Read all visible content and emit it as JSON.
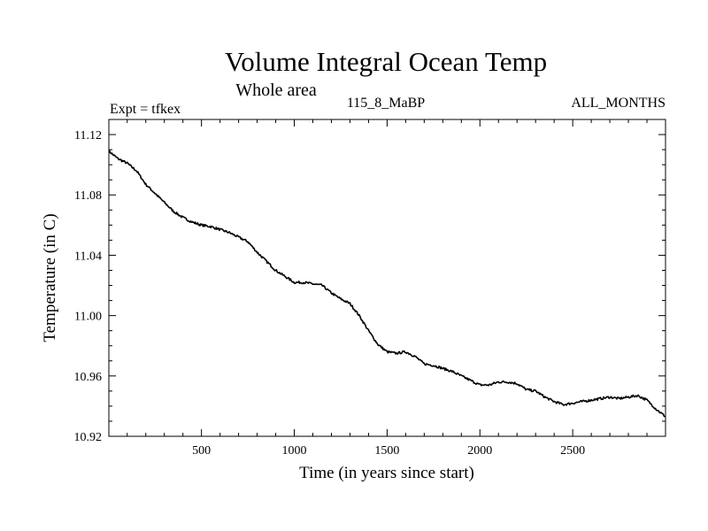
{
  "chart_data": {
    "type": "line",
    "title": "Volume Integral Ocean Temp",
    "subtitle": "Whole area",
    "expt_label": "Expt = tfkex",
    "run_label": "115_8_MaBP",
    "period_label": "ALL_MONTHS",
    "xlabel": "Time (in years since start)",
    "ylabel": "Temperature (in C)",
    "xlim": [
      1,
      3000
    ],
    "ylim": [
      10.92,
      11.13
    ],
    "x_ticks": [
      500,
      1000,
      1500,
      2000,
      2500
    ],
    "x_tick_labels": [
      "500",
      "1000",
      "1500",
      "2000",
      "2500"
    ],
    "y_ticks": [
      10.92,
      10.96,
      11.0,
      11.04,
      11.08,
      11.12
    ],
    "y_tick_labels": [
      "10.92",
      "10.96",
      "11.00",
      "11.04",
      "11.08",
      "11.12"
    ],
    "grid": false,
    "line_color": "#000000",
    "series": [
      {
        "x": [
          1,
          50,
          100,
          150,
          200,
          250,
          300,
          350,
          400,
          450,
          500,
          550,
          600,
          650,
          700,
          750,
          800,
          850,
          900,
          950,
          1000,
          1050,
          1100,
          1150,
          1200,
          1250,
          1300,
          1350,
          1400,
          1450,
          1500,
          1550,
          1600,
          1650,
          1700,
          1750,
          1800,
          1850,
          1900,
          1950,
          2000,
          2050,
          2100,
          2150,
          2200,
          2250,
          2300,
          2350,
          2400,
          2450,
          2500,
          2550,
          2600,
          2650,
          2700,
          2750,
          2800,
          2850,
          2900,
          2950,
          3000
        ],
        "y": [
          11.109,
          11.104,
          11.101,
          11.096,
          11.087,
          11.081,
          11.075,
          11.069,
          11.065,
          11.062,
          11.06,
          11.059,
          11.057,
          11.055,
          11.052,
          11.049,
          11.042,
          11.036,
          11.03,
          11.026,
          11.022,
          11.022,
          11.021,
          11.02,
          11.015,
          11.011,
          11.008,
          11.0,
          10.99,
          10.981,
          10.976,
          10.975,
          10.976,
          10.973,
          10.968,
          10.967,
          10.965,
          10.963,
          10.96,
          10.957,
          10.954,
          10.954,
          10.956,
          10.956,
          10.955,
          10.951,
          10.95,
          10.946,
          10.943,
          10.941,
          10.942,
          10.943,
          10.944,
          10.945,
          10.946,
          10.945,
          10.946,
          10.947,
          10.944,
          10.938,
          10.933
        ]
      }
    ]
  }
}
